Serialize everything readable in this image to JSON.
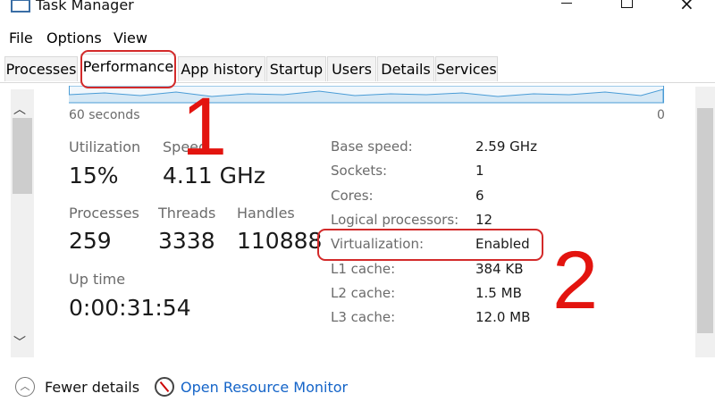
{
  "window": {
    "title": "Task Manager"
  },
  "menu": [
    "File",
    "Options",
    "View"
  ],
  "tabs": [
    "Processes",
    "Performance",
    "App history",
    "Startup",
    "Users",
    "Details",
    "Services"
  ],
  "graph": {
    "left_label": "60 seconds",
    "right_label": "0"
  },
  "stats": [
    {
      "label": "Utilization",
      "value": "15%"
    },
    {
      "label": "Speed",
      "value": "4.11 GHz"
    },
    {
      "label": "Processes",
      "value": "259"
    },
    {
      "label": "Threads",
      "value": "3338"
    },
    {
      "label": "Handles",
      "value": "110888"
    },
    {
      "label": "Up time",
      "value": "0:00:31:54"
    }
  ],
  "details": [
    [
      "Base speed:",
      "2.59 GHz"
    ],
    [
      "Sockets:",
      "1"
    ],
    [
      "Cores:",
      "6"
    ],
    [
      "Logical processors:",
      "12"
    ],
    [
      "Virtualization:",
      "Enabled"
    ],
    [
      "L1 cache:",
      "384 KB"
    ],
    [
      "L2 cache:",
      "1.5 MB"
    ],
    [
      "L3 cache:",
      "12.0 MB"
    ]
  ],
  "footer": {
    "fewer_details": "Fewer details",
    "resource_monitor": "Open Resource Monitor"
  },
  "annotations": [
    "1",
    "2"
  ]
}
